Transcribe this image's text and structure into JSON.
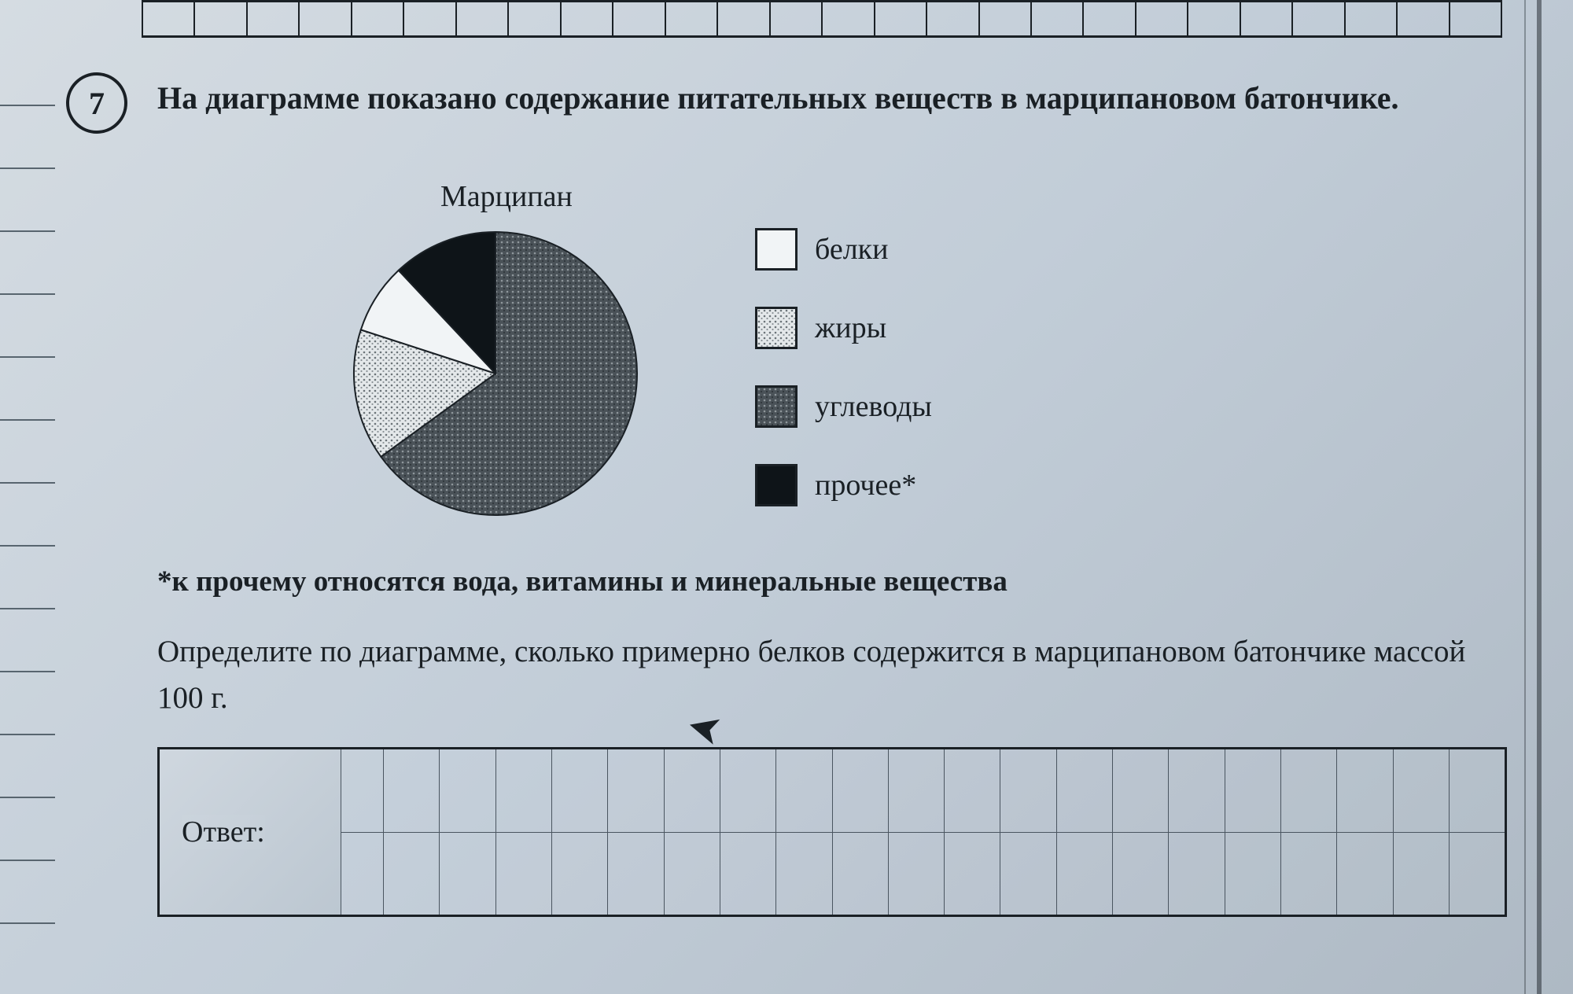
{
  "question_number": "7",
  "question_text": "На диаграмме показано содержание питательных веществ в марципановом батончике.",
  "chart": {
    "type": "pie",
    "title": "Марципан",
    "title_fontsize": 38,
    "radius": 180,
    "stroke": "#1a2025",
    "stroke_width": 2,
    "slices": [
      {
        "key": "carbs",
        "pct": 65,
        "fill": "pattern-carbs"
      },
      {
        "key": "fats",
        "pct": 15,
        "fill": "pattern-fats"
      },
      {
        "key": "protein",
        "pct": 8,
        "fill": "#f1f4f6"
      },
      {
        "key": "other",
        "pct": 12,
        "fill": "#0e1418"
      }
    ]
  },
  "legend": {
    "items": [
      {
        "key": "protein",
        "label": "белки",
        "swatch_fill": "#f1f4f6"
      },
      {
        "key": "fats",
        "label": "жиры",
        "swatch_fill": "pattern-fats"
      },
      {
        "key": "carbs",
        "label": "углеводы",
        "swatch_fill": "pattern-carbs"
      },
      {
        "key": "other",
        "label": "прочее*",
        "swatch_fill": "#0e1418"
      }
    ],
    "label_fontsize": 38
  },
  "footnote": "*к прочему относятся вода, витамины и минеральные вещества",
  "task": "Определите по диаграмме, сколько примерно белков содержится в марципановом батончике массой 100 г.",
  "answer_label": "Ответ:",
  "answer_grid": {
    "cols": 24,
    "rows": 2
  },
  "patterns": {
    "pattern-fats": {
      "bg": "#e4e8ea",
      "dot": "#6b7378",
      "size": 7
    },
    "pattern-carbs": {
      "bg": "#4a5258",
      "dot": "#8f979c",
      "size": 7
    }
  },
  "colors": {
    "page_bg_from": "#d5dce2",
    "page_bg_to": "#aeb9c4",
    "ink": "#1a2025",
    "grid_line": "#4a5560"
  },
  "typography": {
    "family": "Georgia / Times-like serif",
    "body_pt": 39,
    "bold_question": true
  }
}
